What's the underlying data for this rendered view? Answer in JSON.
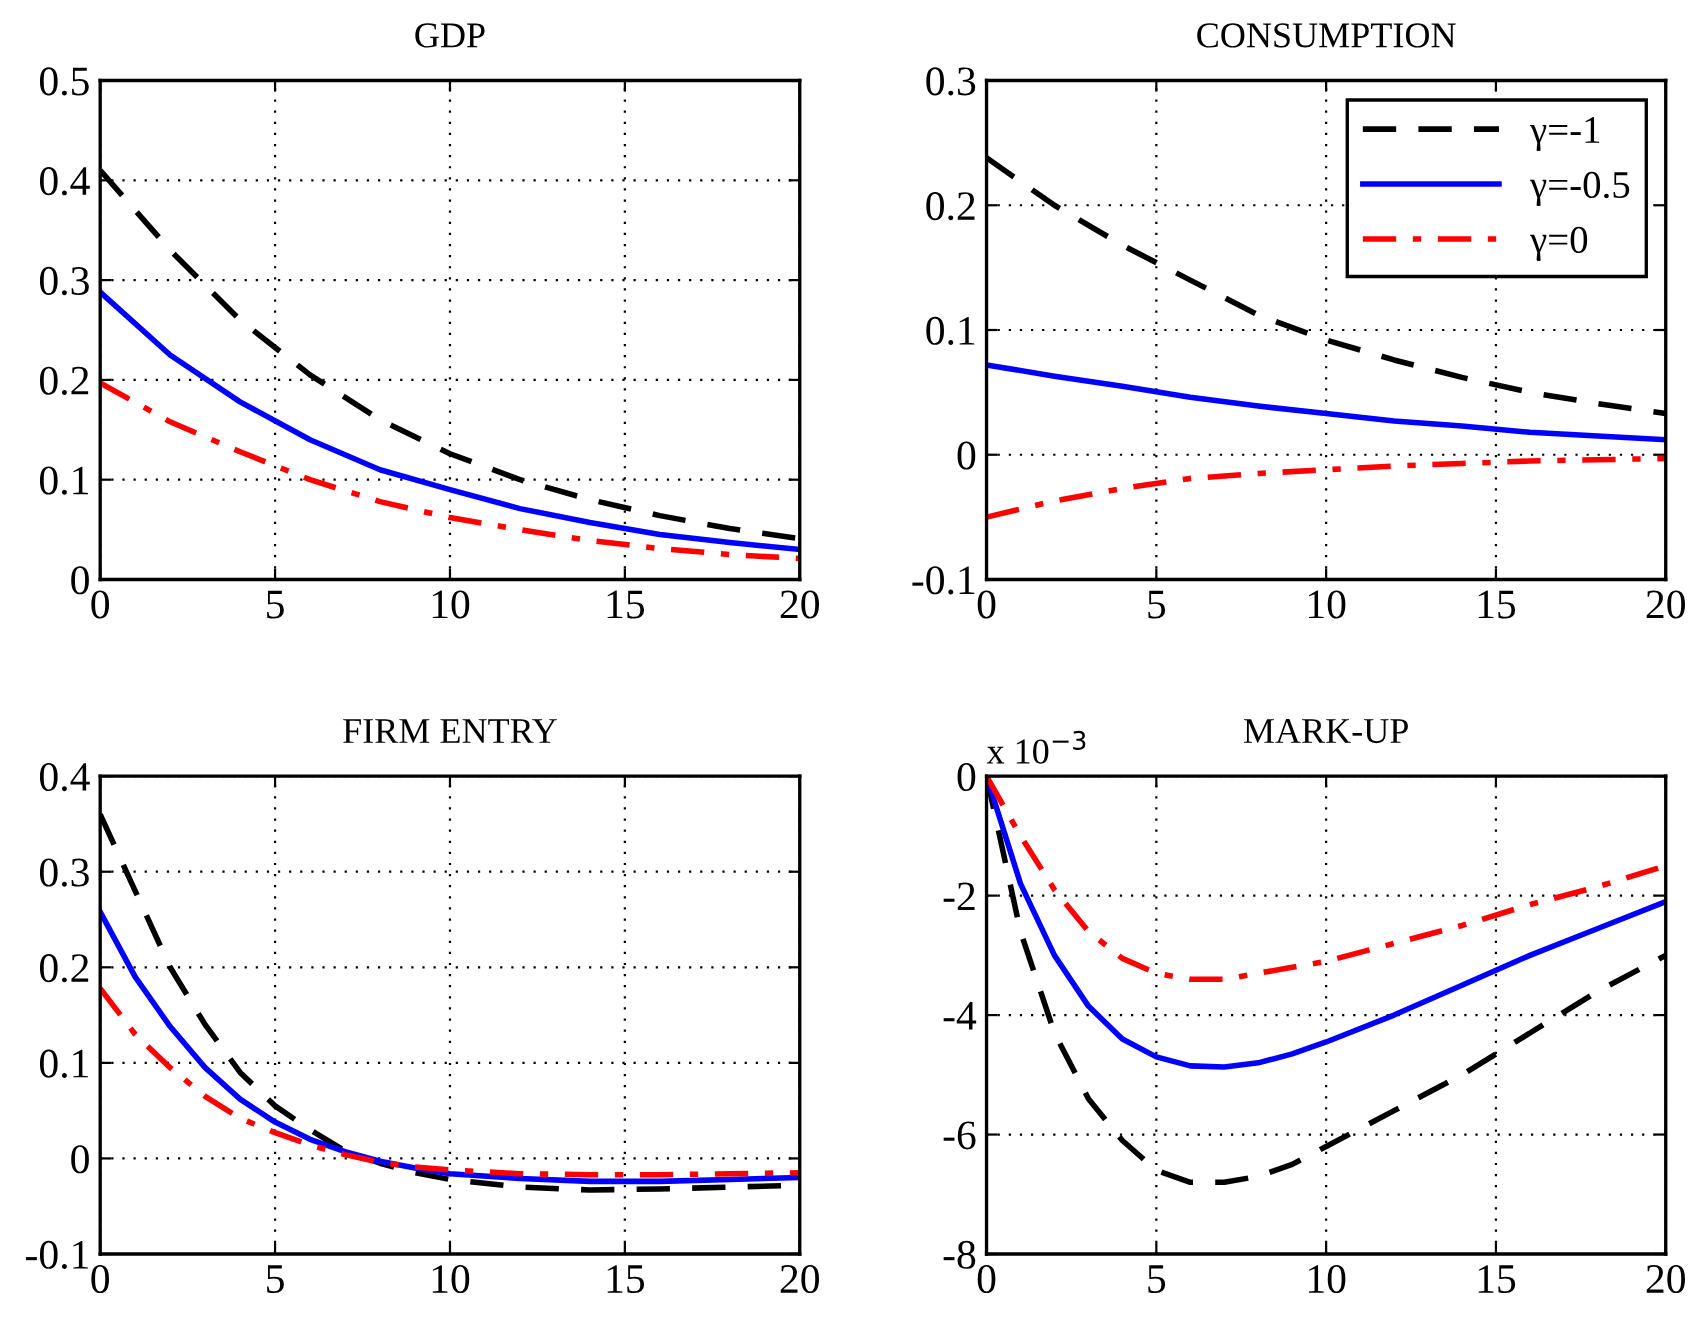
{
  "chart_data": [
    {
      "type": "line",
      "title": "GDP",
      "xlim": [
        0,
        20
      ],
      "xticks": [
        0,
        5,
        10,
        15,
        20
      ],
      "ylim": [
        0,
        0.5
      ],
      "yticks": [
        0,
        0.1,
        0.2,
        0.3,
        0.4,
        0.5
      ],
      "grid": true,
      "legend": false,
      "x": [
        0,
        2,
        4,
        6,
        8,
        10,
        12,
        14,
        16,
        18,
        20
      ],
      "series": [
        {
          "color": "#000000",
          "line_style": "dashed",
          "values": [
            0.41,
            0.33,
            0.26,
            0.205,
            0.16,
            0.126,
            0.1,
            0.08,
            0.064,
            0.051,
            0.041
          ]
        },
        {
          "color": "#0000ff",
          "line_style": "solid",
          "values": [
            0.288,
            0.225,
            0.178,
            0.14,
            0.11,
            0.09,
            0.071,
            0.057,
            0.045,
            0.037,
            0.03
          ]
        },
        {
          "color": "#ff0000",
          "line_style": "dashdot",
          "values": [
            0.197,
            0.158,
            0.128,
            0.1,
            0.078,
            0.062,
            0.05,
            0.039,
            0.031,
            0.025,
            0.021
          ]
        }
      ]
    },
    {
      "type": "line",
      "title": "CONSUMPTION",
      "xlim": [
        0,
        20
      ],
      "xticks": [
        0,
        5,
        10,
        15,
        20
      ],
      "ylim": [
        -0.1,
        0.3
      ],
      "yticks": [
        -0.1,
        0,
        0.1,
        0.2,
        0.3
      ],
      "grid": true,
      "legend": "top right",
      "x": [
        0,
        2,
        4,
        6,
        8,
        10,
        12,
        14,
        16,
        18,
        20
      ],
      "series": [
        {
          "name": "γ=-1",
          "color": "#000000",
          "line_style": "dashed",
          "values": [
            0.238,
            0.2,
            0.168,
            0.14,
            0.112,
            0.092,
            0.076,
            0.062,
            0.05,
            0.041,
            0.033
          ]
        },
        {
          "name": "γ=-0.5",
          "color": "#0000ff",
          "line_style": "solid",
          "values": [
            0.072,
            0.063,
            0.055,
            0.046,
            0.039,
            0.033,
            0.027,
            0.023,
            0.018,
            0.015,
            0.012
          ]
        },
        {
          "name": "γ=0",
          "color": "#ff0000",
          "line_style": "dashdot",
          "values": [
            -0.05,
            -0.037,
            -0.027,
            -0.019,
            -0.015,
            -0.012,
            -0.009,
            -0.007,
            -0.005,
            -0.004,
            -0.003
          ]
        }
      ]
    },
    {
      "type": "line",
      "title": "FIRM ENTRY",
      "xlim": [
        0,
        20
      ],
      "xticks": [
        0,
        5,
        10,
        15,
        20
      ],
      "ylim": [
        -0.1,
        0.4
      ],
      "yticks": [
        -0.1,
        0,
        0.1,
        0.2,
        0.3,
        0.4
      ],
      "grid": true,
      "legend": false,
      "x": [
        0,
        1,
        2,
        3,
        4,
        5,
        6,
        7,
        8,
        9,
        10,
        12,
        14,
        16,
        18,
        20
      ],
      "series": [
        {
          "color": "#000000",
          "line_style": "dashed",
          "values": [
            0.36,
            0.28,
            0.2,
            0.14,
            0.09,
            0.055,
            0.03,
            0.008,
            -0.005,
            -0.015,
            -0.022,
            -0.03,
            -0.033,
            -0.032,
            -0.03,
            -0.028
          ]
        },
        {
          "color": "#0000ff",
          "line_style": "solid",
          "values": [
            0.258,
            0.19,
            0.138,
            0.095,
            0.062,
            0.038,
            0.02,
            0.007,
            -0.003,
            -0.01,
            -0.016,
            -0.021,
            -0.024,
            -0.024,
            -0.022,
            -0.02
          ]
        },
        {
          "color": "#ff0000",
          "line_style": "dashdot",
          "values": [
            0.178,
            0.13,
            0.095,
            0.065,
            0.042,
            0.027,
            0.014,
            0.004,
            -0.004,
            -0.009,
            -0.012,
            -0.016,
            -0.017,
            -0.017,
            -0.016,
            -0.015
          ]
        }
      ]
    },
    {
      "type": "line",
      "title": "MARK-UP",
      "annotations": [
        "x 10$^{−3}$"
      ],
      "xlim": [
        0,
        20
      ],
      "xticks": [
        0,
        5,
        10,
        15,
        20
      ],
      "ylim": [
        -8,
        0
      ],
      "yticks": [
        -8,
        -6,
        -4,
        -2,
        0
      ],
      "grid": true,
      "legend": false,
      "x": [
        0,
        1,
        2,
        3,
        4,
        5,
        6,
        7,
        8,
        9,
        10,
        12,
        14,
        16,
        18,
        20
      ],
      "series": [
        {
          "color": "#000000",
          "line_style": "dashed",
          "values": [
            0,
            -2.6,
            -4.3,
            -5.4,
            -6.1,
            -6.6,
            -6.8,
            -6.8,
            -6.7,
            -6.5,
            -6.2,
            -5.6,
            -5.0,
            -4.3,
            -3.6,
            -3.0
          ]
        },
        {
          "color": "#0000ff",
          "line_style": "solid",
          "values": [
            0,
            -1.8,
            -3.0,
            -3.85,
            -4.4,
            -4.7,
            -4.85,
            -4.87,
            -4.8,
            -4.65,
            -4.45,
            -4.0,
            -3.5,
            -3.0,
            -2.55,
            -2.1
          ]
        },
        {
          "color": "#ff0000",
          "line_style": "dashdot",
          "values": [
            0,
            -1.0,
            -1.9,
            -2.6,
            -3.05,
            -3.3,
            -3.4,
            -3.4,
            -3.3,
            -3.2,
            -3.1,
            -2.8,
            -2.5,
            -2.15,
            -1.85,
            -1.5
          ]
        }
      ]
    }
  ]
}
